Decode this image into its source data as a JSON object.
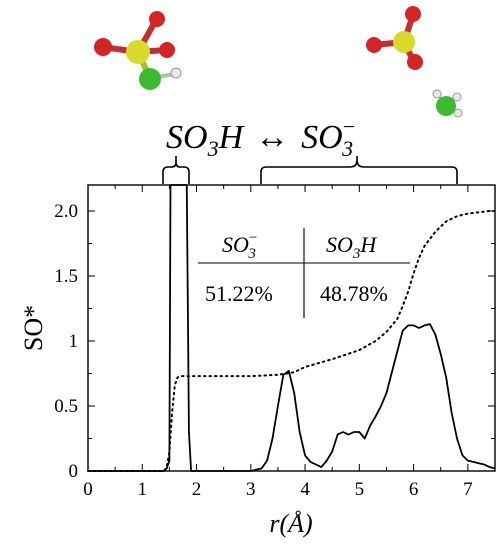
{
  "header": {
    "left_species": "SO",
    "left_sub": "3",
    "left_tail": "H",
    "arrow": "↔",
    "right_species": "SO",
    "right_sub": "3",
    "right_sup": "−"
  },
  "table": {
    "col1_name": "SO",
    "col1_sub": "3",
    "col1_sup": "−",
    "col2_name": "SO",
    "col2_sub": "3",
    "col2_tail": "H",
    "col1_value": "51.22%",
    "col2_value": "48.78%"
  },
  "colors": {
    "sulfur": "#d9d92b",
    "oxygen": "#d42424",
    "chlorine": "#3dbb2f",
    "hydrogen": "#e8e8e8",
    "line": "#000000"
  },
  "chart_data": {
    "type": "line",
    "xlabel": "r(Å)",
    "ylabel": "SO*",
    "xlim": [
      0,
      7.5
    ],
    "ylim": [
      0,
      2.2
    ],
    "x_ticks": [
      "0",
      "1",
      "2",
      "3",
      "4",
      "5",
      "6",
      "7"
    ],
    "y_ticks": [
      "0",
      "0.5",
      "1",
      "1.5",
      "2.0"
    ],
    "y_tick_values": [
      0,
      0.5,
      1,
      1.5,
      2.0
    ],
    "series": [
      {
        "style": "solid",
        "x": [
          0,
          1.4,
          1.45,
          1.5,
          1.52,
          1.55,
          1.6,
          1.65,
          1.72,
          1.78,
          1.82,
          1.86,
          1.9,
          3.0,
          3.2,
          3.3,
          3.4,
          3.5,
          3.6,
          3.7,
          3.8,
          3.9,
          4.0,
          4.1,
          4.2,
          4.3,
          4.4,
          4.5,
          4.6,
          4.7,
          4.8,
          4.9,
          5.0,
          5.1,
          5.2,
          5.3,
          5.4,
          5.5,
          5.6,
          5.7,
          5.8,
          5.9,
          6.0,
          6.1,
          6.2,
          6.3,
          6.4,
          6.5,
          6.6,
          6.7,
          6.8,
          6.9,
          7.0,
          7.1,
          7.2,
          7.3,
          7.4,
          7.5
        ],
        "y": [
          0,
          0,
          0.02,
          0.08,
          2.2,
          2.2,
          2.2,
          2.2,
          2.2,
          2.2,
          2.2,
          0.3,
          0,
          0,
          0.02,
          0.08,
          0.25,
          0.5,
          0.74,
          0.77,
          0.6,
          0.3,
          0.12,
          0.07,
          0.05,
          0.03,
          0.08,
          0.15,
          0.28,
          0.3,
          0.28,
          0.3,
          0.3,
          0.25,
          0.35,
          0.42,
          0.5,
          0.6,
          0.76,
          0.92,
          1.08,
          1.12,
          1.12,
          1.1,
          1.12,
          1.13,
          1.05,
          0.9,
          0.72,
          0.45,
          0.25,
          0.12,
          0.08,
          0.07,
          0.06,
          0.05,
          0.03,
          0.02
        ]
      },
      {
        "style": "dotted",
        "x": [
          0,
          1.4,
          1.45,
          1.5,
          1.55,
          1.6,
          1.65,
          1.72,
          1.8,
          2.0,
          2.5,
          3.0,
          3.5,
          3.8,
          4.0,
          4.5,
          5.0,
          5.3,
          5.5,
          5.7,
          5.8,
          5.9,
          6.0,
          6.1,
          6.2,
          6.4,
          6.6,
          6.8,
          7.0,
          7.2,
          7.4,
          7.5
        ],
        "y": [
          0,
          0,
          0.03,
          0.15,
          0.45,
          0.66,
          0.72,
          0.73,
          0.73,
          0.73,
          0.73,
          0.73,
          0.74,
          0.76,
          0.8,
          0.86,
          0.93,
          1.0,
          1.07,
          1.17,
          1.27,
          1.38,
          1.52,
          1.64,
          1.73,
          1.84,
          1.92,
          1.96,
          1.98,
          1.99,
          2.0,
          2.0
        ]
      }
    ]
  }
}
